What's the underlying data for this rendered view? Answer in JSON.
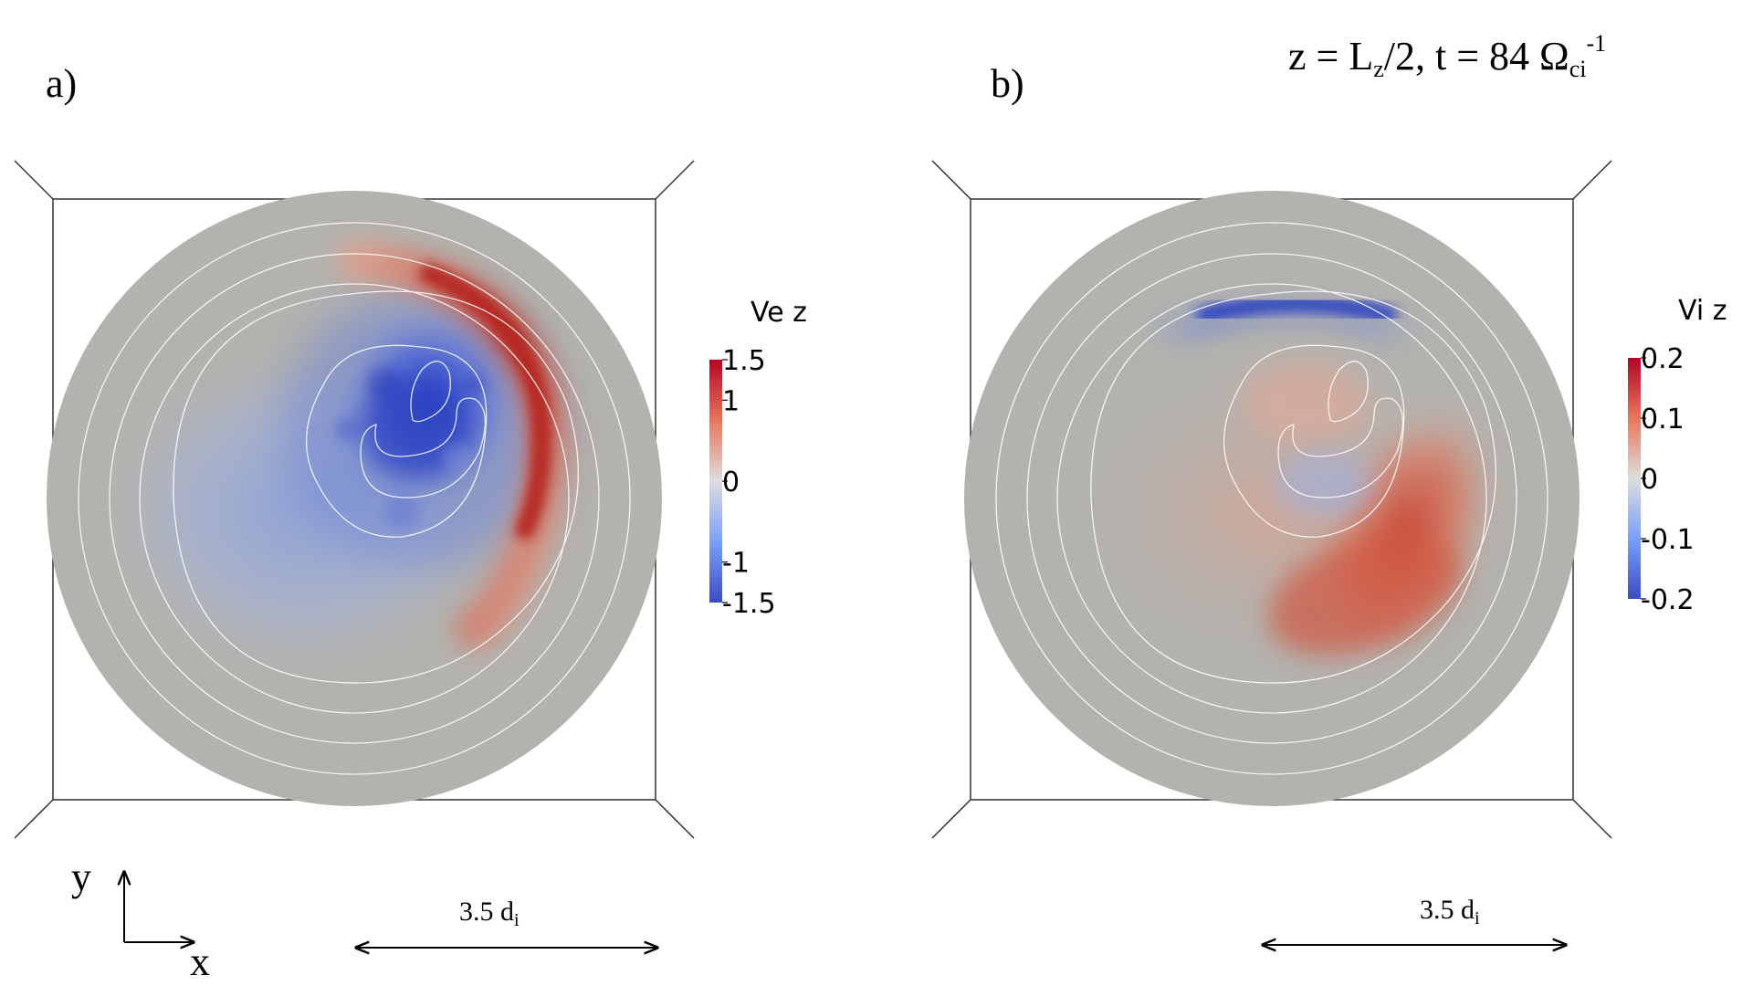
{
  "header": {
    "caption_z": "z = L",
    "caption_z_sub": "z",
    "caption_mid": "/2, t = 84 Ω",
    "caption_ci_sub": "ci",
    "caption_exp": "-1"
  },
  "panels": [
    {
      "label": "a)",
      "colorbar": {
        "title": "Ve z",
        "ticks": [
          "1.5",
          "1",
          "0",
          "-1",
          "-1.5"
        ],
        "tick_values": [
          1.5,
          1,
          0,
          -1,
          -1.5
        ],
        "range": [
          -1.5,
          1.5
        ]
      },
      "scale_bar": {
        "text": "3.5 d",
        "sub": "i"
      }
    },
    {
      "label": "b)",
      "colorbar": {
        "title": "Vi z",
        "ticks": [
          "0.2",
          "0.1",
          "0",
          "-0.1",
          "-0.2"
        ],
        "tick_values": [
          0.2,
          0.1,
          0,
          -0.1,
          -0.2
        ],
        "range": [
          -0.2,
          0.2
        ]
      },
      "scale_bar": {
        "text": "3.5 d",
        "sub": "i"
      }
    }
  ],
  "axes_indicator": {
    "y": "y",
    "x": "x"
  },
  "colors": {
    "background_disk": "#b3b2ae",
    "positive": "#b40426",
    "negative": "#3b4cc0",
    "neutral": "#dddddd",
    "contour": "#ffffff"
  }
}
